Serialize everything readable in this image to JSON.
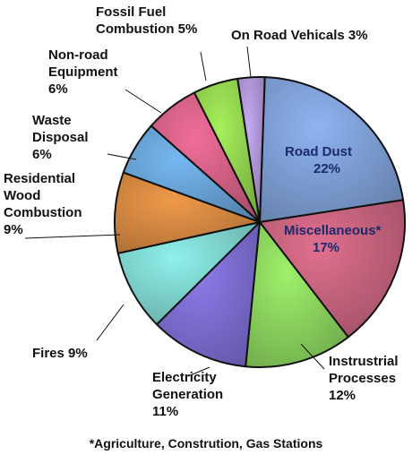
{
  "chart_data": {
    "type": "pie",
    "slices": [
      {
        "name": "Road Dust",
        "value": 22,
        "label_lines": [
          "Road Dust",
          "22%"
        ],
        "color": "#8fb4f2",
        "label_inside": true
      },
      {
        "name": "Miscellaneous*",
        "value": 17,
        "label_lines": [
          "Miscellaneous*",
          "17%"
        ],
        "color": "#e0708e",
        "label_inside": true
      },
      {
        "name": "Instrustrial Processes",
        "value": 12,
        "label_lines": [
          "Instrustrial",
          "Processes",
          "12%"
        ],
        "color": "#9ff06b",
        "label_inside": false
      },
      {
        "name": "Electricity Generation",
        "value": 11,
        "label_lines": [
          "Electricity",
          "Generation",
          "11%"
        ],
        "color": "#8c7cec",
        "label_inside": false
      },
      {
        "name": "Fires",
        "value": 9,
        "label_lines": [
          "Fires 9%"
        ],
        "color": "#8ff0ea",
        "label_inside": false
      },
      {
        "name": "Residential Wood Combustion",
        "value": 9,
        "label_lines": [
          "Residential",
          "Wood",
          "Combustion",
          "9%"
        ],
        "color": "#f09a4a",
        "label_inside": false
      },
      {
        "name": "Waste Disposal",
        "value": 6,
        "label_lines": [
          "Waste",
          "Disposal",
          "6%"
        ],
        "color": "#76b8f2",
        "label_inside": false
      },
      {
        "name": "Non-road Equipment",
        "value": 6,
        "label_lines": [
          "Non-road",
          "Equipment",
          "6%"
        ],
        "color": "#f06e98",
        "label_inside": false
      },
      {
        "name": "Fossil Fuel Combustion",
        "value": 5,
        "label_lines": [
          "Fossil Fuel",
          "Combustion 5%"
        ],
        "color": "#a6f05a",
        "label_inside": false
      },
      {
        "name": "On Road Vehicals",
        "value": 3,
        "label_lines": [
          "On Road Vehicals 3%"
        ],
        "color": "#c5aaf2",
        "label_inside": false
      }
    ],
    "footnote": "*Agriculture, Constrution, Gas Stations"
  }
}
